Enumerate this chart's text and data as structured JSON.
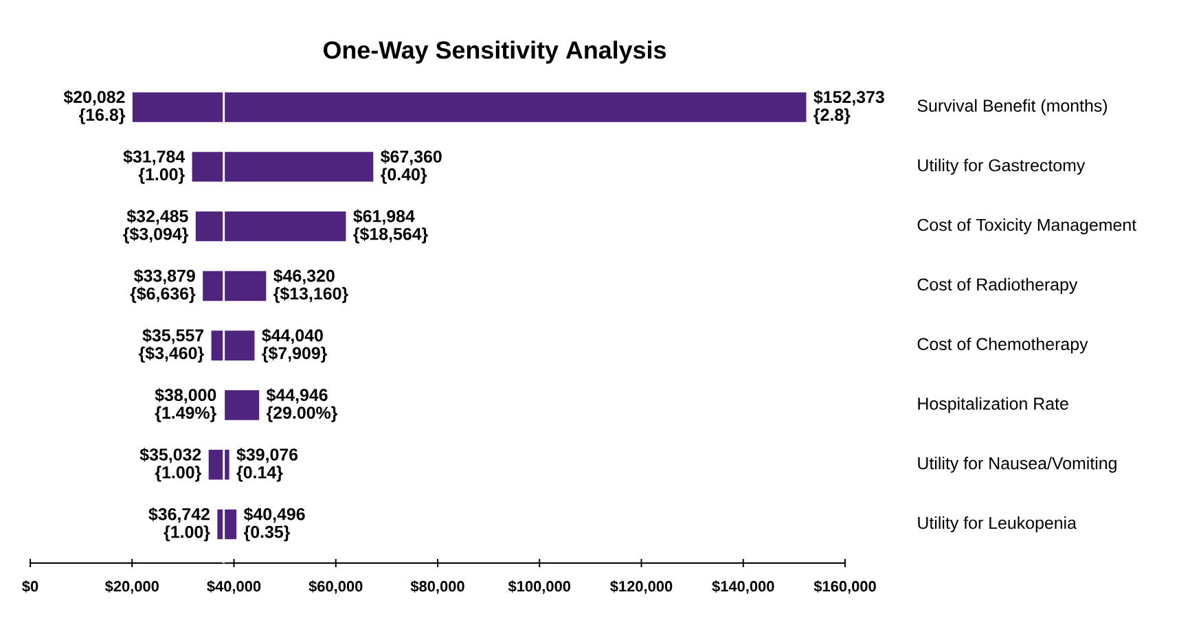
{
  "chart_data": {
    "type": "bar",
    "orientation": "horizontal",
    "title": "One-Way Sensitivity Analysis",
    "categories": [
      "Survival Benefit (months)",
      "Utility for Gastrectomy",
      "Cost of Toxicity Management",
      "Cost of Radiotherapy",
      "Cost of Chemotherapy",
      "Hospitalization Rate",
      "Utility for Nausea/Vomiting",
      "Utility for Leukopenia"
    ],
    "base": [
      20082,
      31784,
      32485,
      33879,
      35557,
      38000,
      35032,
      36742
    ],
    "values": [
      132291,
      35576,
      29499,
      12441,
      8483,
      6946,
      4044,
      3754
    ],
    "color": "#4f247e",
    "xlim": [
      0,
      160000
    ],
    "xticks": [
      {
        "value": 0,
        "label": "$0"
      },
      {
        "value": 20000,
        "label": "$20,000"
      },
      {
        "value": 40000,
        "label": "$40,000"
      },
      {
        "value": 60000,
        "label": "$60,000"
      },
      {
        "value": 80000,
        "label": "$80,000"
      },
      {
        "value": 100000,
        "label": "$100,000"
      },
      {
        "value": 120000,
        "label": "$120,000"
      },
      {
        "value": 140000,
        "label": "$140,000"
      },
      {
        "value": 160000,
        "label": "$160,000"
      }
    ],
    "ref_lines": [
      {
        "axis": "x",
        "value": 38000,
        "color": "#ffffff"
      }
    ],
    "annotations": [
      {
        "text": "$20,082 {16.8}",
        "x": 20082,
        "y": "Survival Benefit (months)"
      },
      {
        "text": "$152,373 {2.8}",
        "x": 152373,
        "y": "Survival Benefit (months)"
      },
      {
        "text": "$31,784 {1.00}",
        "x": 31784,
        "y": "Utility for Gastrectomy"
      },
      {
        "text": "$67,360 {0.40}",
        "x": 67360,
        "y": "Utility for Gastrectomy"
      },
      {
        "text": "$32,485 {$3,094}",
        "x": 32485,
        "y": "Cost of Toxicity Management"
      },
      {
        "text": "$61,984 {$18,564}",
        "x": 61984,
        "y": "Cost of Toxicity Management"
      },
      {
        "text": "$33,879 {$6,636}",
        "x": 33879,
        "y": "Cost of Radiotherapy"
      },
      {
        "text": "$46,320 {$13,160}",
        "x": 46320,
        "y": "Cost of Radiotherapy"
      },
      {
        "text": "$35,557 {$3,460}",
        "x": 35557,
        "y": "Cost of Chemotherapy"
      },
      {
        "text": "$44,040 {$7,909}",
        "x": 44040,
        "y": "Cost of Chemotherapy"
      },
      {
        "text": "$38,000 {1.49%}",
        "x": 38000,
        "y": "Hospitalization Rate"
      },
      {
        "text": "$44,946 {29.00%}",
        "x": 44946,
        "y": "Hospitalization Rate"
      },
      {
        "text": "$35,032 {1.00}",
        "x": 35032,
        "y": "Utility for Nausea/Vomiting"
      },
      {
        "text": "$39,076 {0.14}",
        "x": 39076,
        "y": "Utility for Nausea/Vomiting"
      },
      {
        "text": "$36,742 {1.00}",
        "x": 36742,
        "y": "Utility for Leukopenia"
      },
      {
        "text": "$40,496 {0.35}",
        "x": 40496,
        "y": "Utility for Leukopenia"
      }
    ]
  }
}
